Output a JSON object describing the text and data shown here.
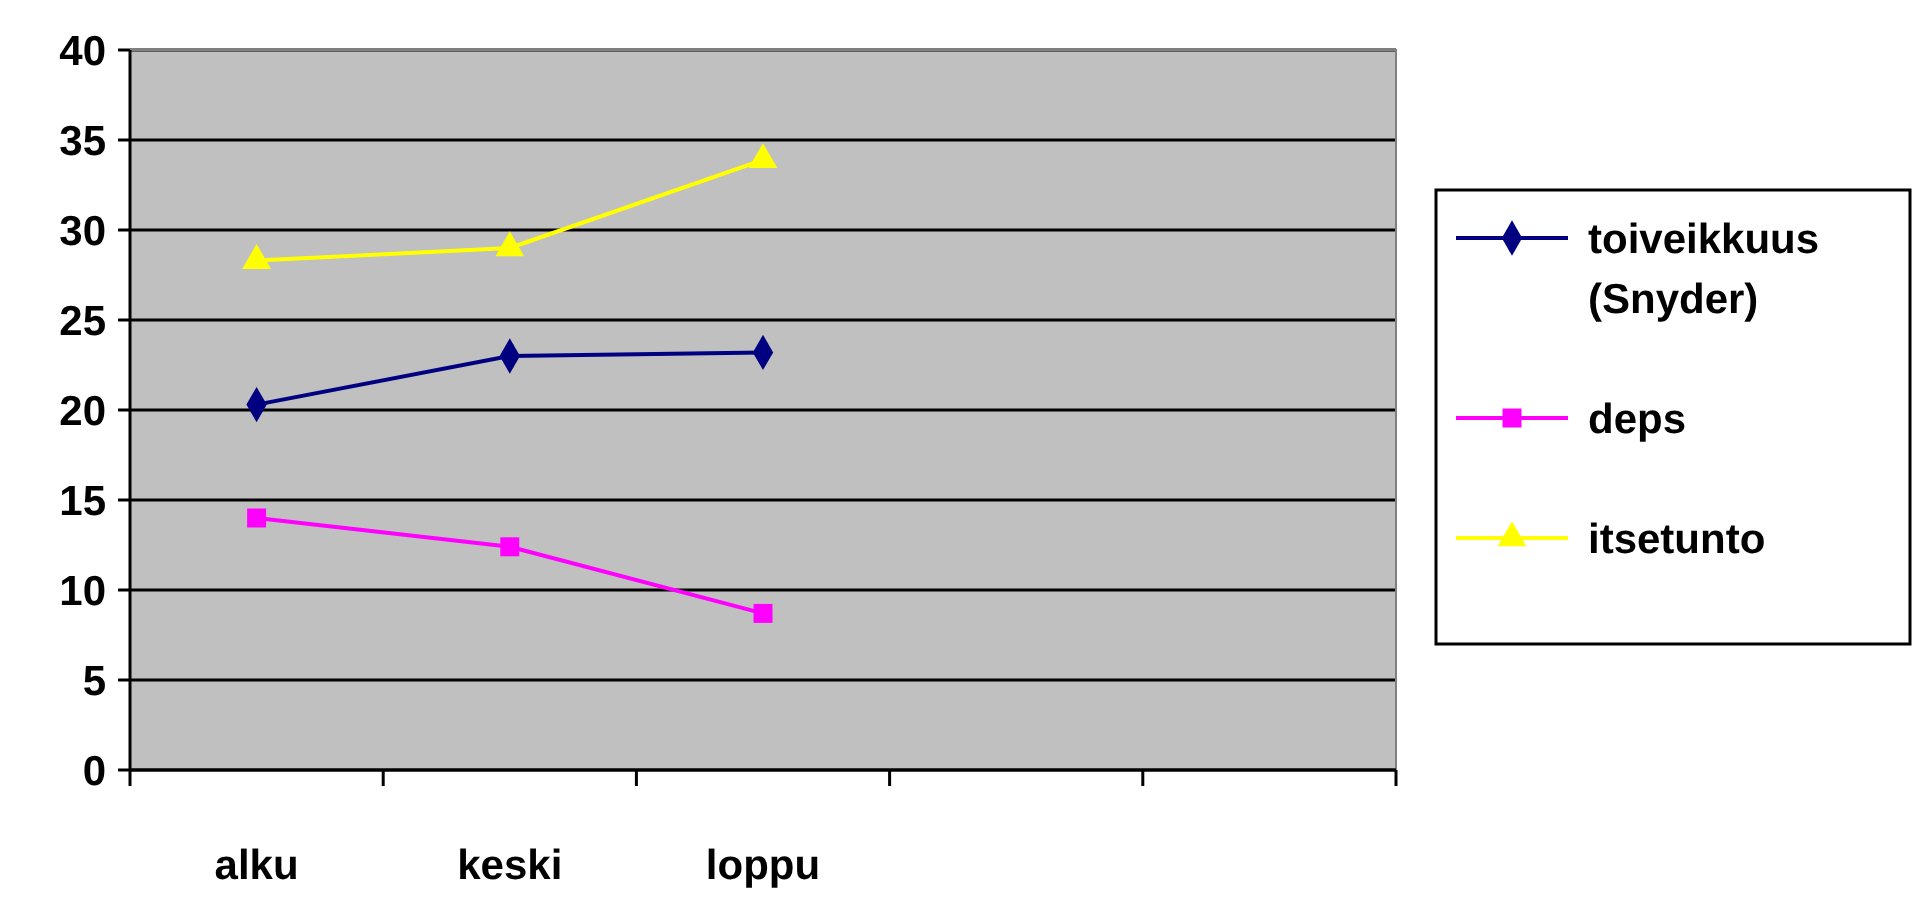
{
  "chart_data": {
    "type": "line",
    "categories": [
      "alku",
      "keski",
      "loppu",
      null,
      null
    ],
    "ylim": [
      0,
      40
    ],
    "yticks": [
      0,
      5,
      10,
      15,
      20,
      25,
      30,
      35,
      40
    ],
    "grid": "y",
    "legend": "right",
    "series": [
      {
        "name": "toiveikkuus (Snyder)",
        "color": "#000080",
        "marker": "diamond",
        "values": [
          20.3,
          23.0,
          23.2,
          null,
          null
        ]
      },
      {
        "name": "deps",
        "color": "#ff00ff",
        "marker": "square",
        "values": [
          14.0,
          12.4,
          8.7,
          null,
          null
        ]
      },
      {
        "name": "itsetunto",
        "color": "#ffff00",
        "marker": "triangle",
        "values": [
          28.3,
          29.0,
          33.9,
          null,
          null
        ]
      }
    ]
  }
}
